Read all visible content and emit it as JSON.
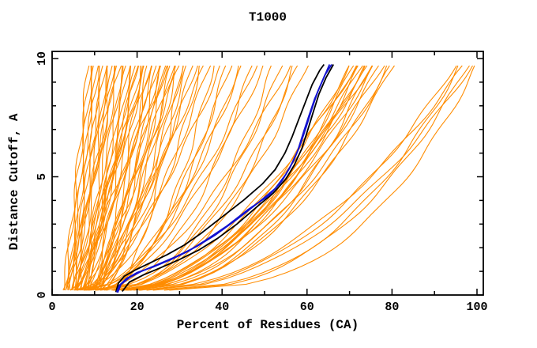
{
  "chart_data": {
    "type": "line",
    "title": "T1000",
    "xlabel": "Percent of Residues (CA)",
    "ylabel": "Distance Cutoff, A",
    "xlim": [
      0,
      101.5
    ],
    "ylim": [
      0,
      10.3
    ],
    "x_major_ticks": [
      0,
      20,
      40,
      60,
      80,
      100
    ],
    "x_tick_labels": [
      "0",
      "20",
      "40",
      "60",
      "80",
      "100"
    ],
    "x_minor_ticks": [
      10,
      30,
      50,
      70,
      90
    ],
    "y_major_ticks": [
      0,
      5,
      10
    ],
    "y_tick_labels": [
      "0",
      "5",
      "10"
    ],
    "y_minor_ticks": [
      1,
      2,
      3,
      4,
      6,
      7,
      8,
      9
    ],
    "grid": false,
    "legend": "none",
    "background": "#ffffff",
    "colors": {
      "ensemble": "#ff8c00",
      "highlight_blue": "#1212d0",
      "highlight_black": "#000000",
      "frame": "#000000",
      "text": "#000000"
    },
    "curve_model": "x(y) = x0 + (x1 - x0) * ((y - 0.2)/9.55)^k  for y in [0.2, 9.75]; ensemble_curves rows = [x0, x1, k]",
    "curve_y_start": 0.2,
    "curve_y_end": 9.75,
    "ensemble_curves": [
      [
        3,
        8.5,
        1.0
      ],
      [
        2.5,
        9,
        0.9
      ],
      [
        4,
        9.5,
        1.1
      ],
      [
        3.5,
        10,
        0.8
      ],
      [
        5,
        10.5,
        1.0
      ],
      [
        4,
        11,
        1.2
      ],
      [
        3,
        11.5,
        0.7
      ],
      [
        5.5,
        12,
        0.95
      ],
      [
        4.5,
        12.5,
        1.1
      ],
      [
        6,
        13,
        0.85
      ],
      [
        5,
        13.5,
        1.0
      ],
      [
        7,
        14,
        0.75
      ],
      [
        6.5,
        14.5,
        1.15
      ],
      [
        4,
        15,
        0.9
      ],
      [
        7.5,
        15.5,
        1.0
      ],
      [
        5,
        16,
        1.25
      ],
      [
        8,
        16.5,
        0.8
      ],
      [
        6,
        17,
        0.95
      ],
      [
        8.5,
        17.5,
        1.1
      ],
      [
        7,
        18,
        0.85
      ],
      [
        9,
        18.5,
        1.0
      ],
      [
        6,
        19,
        0.7
      ],
      [
        10,
        19.5,
        0.9
      ],
      [
        8,
        20,
        1.05
      ],
      [
        11,
        21,
        0.8
      ],
      [
        9,
        22,
        0.95
      ],
      [
        4,
        20,
        0.6
      ],
      [
        6,
        21,
        0.8
      ],
      [
        5,
        22,
        1.0
      ],
      [
        7,
        22.5,
        0.5
      ],
      [
        9,
        23,
        0.7
      ],
      [
        6,
        23.5,
        1.2
      ],
      [
        8,
        24,
        0.9
      ],
      [
        10,
        24.5,
        0.6
      ],
      [
        5,
        25,
        0.8
      ],
      [
        12,
        25.5,
        1.0
      ],
      [
        7,
        26,
        0.7
      ],
      [
        9,
        26.5,
        0.55
      ],
      [
        11,
        27,
        0.9
      ],
      [
        6,
        27.5,
        1.1
      ],
      [
        13,
        28,
        0.8
      ],
      [
        8,
        28.5,
        0.6
      ],
      [
        10,
        29,
        1.0
      ],
      [
        12,
        29.5,
        0.7
      ],
      [
        9,
        30,
        0.9
      ],
      [
        14,
        30.5,
        0.55
      ],
      [
        11,
        31,
        0.75
      ],
      [
        13,
        32,
        0.85
      ],
      [
        5,
        33,
        0.5
      ],
      [
        8,
        34,
        0.7
      ],
      [
        6,
        35,
        0.45
      ],
      [
        10,
        36,
        0.9
      ],
      [
        7,
        37,
        0.6
      ],
      [
        12,
        38,
        0.5
      ],
      [
        9,
        40,
        0.75
      ],
      [
        6,
        41,
        0.42
      ],
      [
        11,
        42,
        0.6
      ],
      [
        8,
        44,
        0.5
      ],
      [
        13,
        45,
        0.7
      ],
      [
        10,
        47,
        0.45
      ],
      [
        7,
        48,
        0.55
      ],
      [
        12,
        50,
        0.65
      ],
      [
        9,
        52,
        0.42
      ],
      [
        14,
        54,
        0.5
      ],
      [
        11,
        56,
        0.6
      ],
      [
        8,
        57,
        0.38
      ],
      [
        13,
        58,
        0.52
      ],
      [
        10,
        60,
        0.45
      ],
      [
        15,
        70,
        0.5
      ],
      [
        16,
        70.5,
        0.55
      ],
      [
        14,
        71,
        0.45
      ],
      [
        17,
        71.5,
        0.5
      ],
      [
        15,
        72,
        0.6
      ],
      [
        18,
        72.5,
        0.48
      ],
      [
        16,
        73,
        0.52
      ],
      [
        14,
        73.5,
        0.45
      ],
      [
        17,
        74,
        0.55
      ],
      [
        15,
        74.5,
        0.5
      ],
      [
        18,
        75,
        0.42
      ],
      [
        16,
        75.5,
        0.58
      ],
      [
        15,
        76,
        0.5
      ],
      [
        17,
        77,
        0.46
      ],
      [
        16,
        78,
        0.52
      ],
      [
        18,
        79,
        0.44
      ],
      [
        17,
        80,
        0.5
      ],
      [
        19,
        80.5,
        0.47
      ],
      [
        20,
        95,
        0.45
      ],
      [
        24,
        96,
        0.4
      ],
      [
        21,
        97,
        0.5
      ],
      [
        26,
        98,
        0.42
      ],
      [
        22,
        99,
        0.47
      ],
      [
        28,
        100,
        0.38
      ]
    ],
    "highlight_curves": [
      {
        "name": "model-black-left",
        "color": "black",
        "points": [
          [
            15.0,
            0.12
          ],
          [
            15.6,
            0.5
          ],
          [
            17,
            0.8
          ],
          [
            19.5,
            1.05
          ],
          [
            23,
            1.35
          ],
          [
            27,
            1.7
          ],
          [
            31,
            2.1
          ],
          [
            35,
            2.6
          ],
          [
            40,
            3.3
          ],
          [
            45,
            4.0
          ],
          [
            49.5,
            4.7
          ],
          [
            52.5,
            5.3
          ],
          [
            54.8,
            6.0
          ],
          [
            56.5,
            6.7
          ],
          [
            58,
            7.4
          ],
          [
            59.5,
            8.1
          ],
          [
            61.2,
            8.9
          ],
          [
            63,
            9.5
          ],
          [
            64,
            9.75
          ]
        ]
      },
      {
        "name": "model-black-right",
        "color": "black",
        "points": [
          [
            16.5,
            0.15
          ],
          [
            18.2,
            0.55
          ],
          [
            21.5,
            0.85
          ],
          [
            25.5,
            1.15
          ],
          [
            30,
            1.5
          ],
          [
            34.5,
            1.9
          ],
          [
            39,
            2.4
          ],
          [
            43.5,
            3.0
          ],
          [
            48,
            3.7
          ],
          [
            52,
            4.3
          ],
          [
            55,
            4.9
          ],
          [
            57,
            5.5
          ],
          [
            58.8,
            6.2
          ],
          [
            60.2,
            7.0
          ],
          [
            61.4,
            7.7
          ],
          [
            62.8,
            8.5
          ],
          [
            64.5,
            9.2
          ],
          [
            66.2,
            9.75
          ]
        ]
      },
      {
        "name": "model-blue-1",
        "color": "blue",
        "points": [
          [
            15.2,
            0.12
          ],
          [
            15.8,
            0.4
          ],
          [
            17.5,
            0.7
          ],
          [
            20,
            0.95
          ],
          [
            24,
            1.2
          ],
          [
            28,
            1.5
          ],
          [
            32,
            1.85
          ],
          [
            36,
            2.3
          ],
          [
            41,
            2.9
          ],
          [
            46,
            3.6
          ],
          [
            51,
            4.2
          ],
          [
            54,
            4.8
          ],
          [
            56,
            5.4
          ],
          [
            57.8,
            6.1
          ],
          [
            59.2,
            6.9
          ],
          [
            60.3,
            7.5
          ],
          [
            61.8,
            8.3
          ],
          [
            63.5,
            9.0
          ],
          [
            65.3,
            9.75
          ]
        ]
      },
      {
        "name": "model-blue-2",
        "color": "blue",
        "points": [
          [
            15.4,
            0.1
          ],
          [
            16.2,
            0.45
          ],
          [
            18.3,
            0.75
          ],
          [
            21,
            1.0
          ],
          [
            25,
            1.3
          ],
          [
            29.5,
            1.65
          ],
          [
            34,
            2.05
          ],
          [
            38.5,
            2.55
          ],
          [
            43.5,
            3.2
          ],
          [
            48.5,
            3.9
          ],
          [
            52.5,
            4.5
          ],
          [
            55,
            5.1
          ],
          [
            56.9,
            5.7
          ],
          [
            58.5,
            6.4
          ],
          [
            59.8,
            7.1
          ],
          [
            61,
            7.8
          ],
          [
            62.5,
            8.6
          ],
          [
            64.2,
            9.3
          ],
          [
            65.8,
            9.75
          ]
        ]
      }
    ]
  }
}
